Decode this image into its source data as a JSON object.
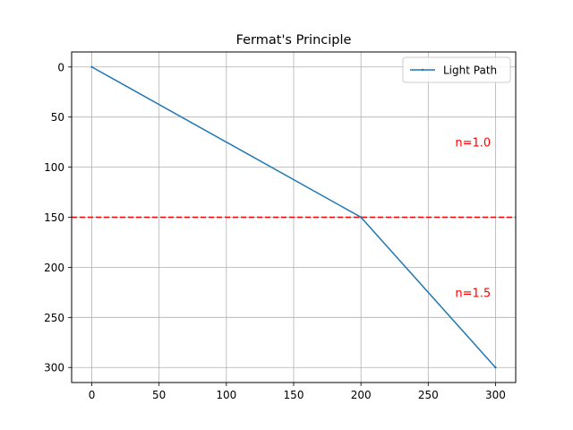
{
  "chart_data": {
    "type": "line",
    "title": "Fermat's Principle",
    "xlabel": "",
    "ylabel": "",
    "xlim": [
      -15,
      315
    ],
    "ylim": [
      315,
      -15
    ],
    "y_inverted": true,
    "grid": true,
    "legend_placement": "top-right",
    "x_ticks": [
      0,
      50,
      100,
      150,
      200,
      250,
      300
    ],
    "y_ticks": [
      0,
      50,
      100,
      150,
      200,
      250,
      300
    ],
    "series": [
      {
        "name": "Light Path",
        "color": "#1f77b4",
        "x": [
          0,
          200,
          300
        ],
        "y": [
          0,
          150,
          300
        ]
      }
    ],
    "interface": {
      "y": 150,
      "color": "#ff0000",
      "style": "dashed"
    },
    "annotations": [
      {
        "text": "n=1.0",
        "x": 270,
        "y": 75,
        "color": "#ff0000"
      },
      {
        "text": "n=1.5",
        "x": 270,
        "y": 225,
        "color": "#ff0000"
      }
    ]
  }
}
